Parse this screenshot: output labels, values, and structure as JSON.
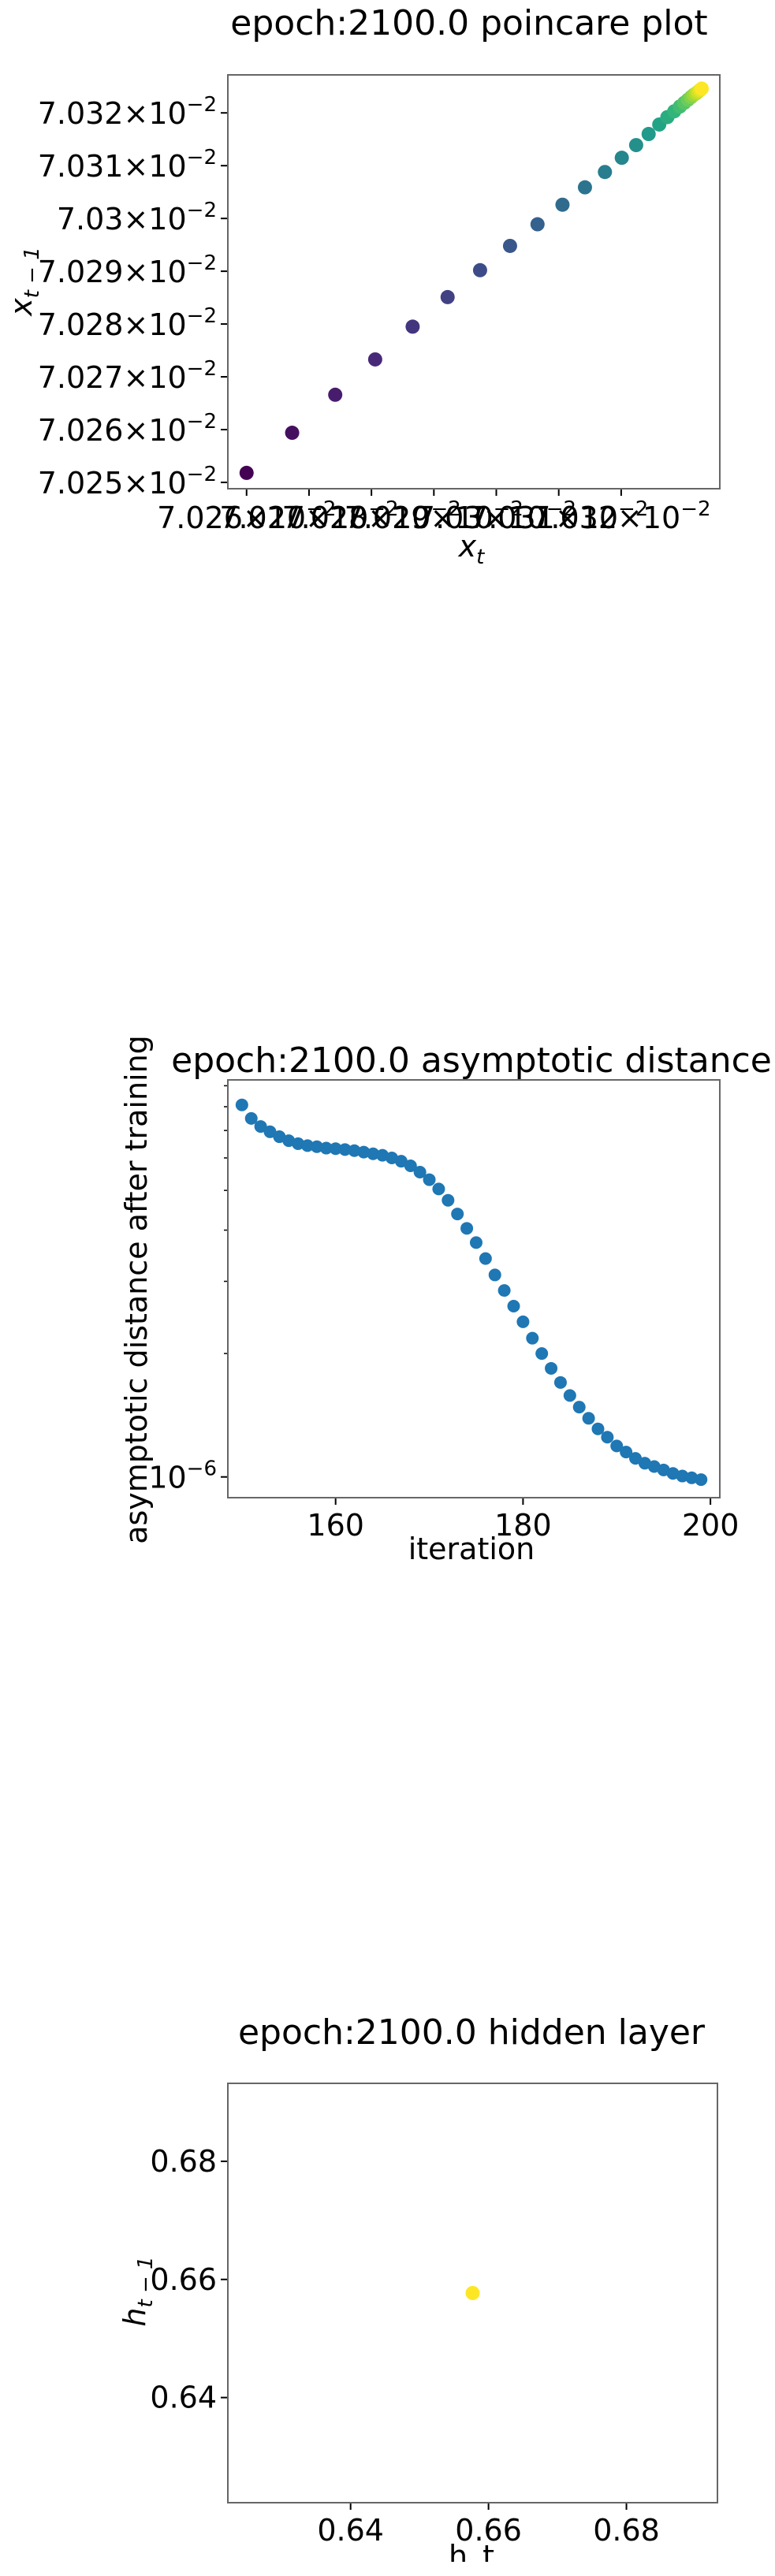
{
  "chart_data": [
    {
      "type": "scatter",
      "title": "epoch:2100.0 poincare plot",
      "xlabel": "x_t",
      "ylabel": "x_{t-1}",
      "colormap": "viridis",
      "x": [
        0.07026,
        0.0702673,
        0.0702742,
        0.0702806,
        0.0702866,
        0.0702922,
        0.0702974,
        0.0703022,
        0.0703066,
        0.0703106,
        0.0703142,
        0.0703174,
        0.0703201,
        0.0703224,
        0.0703244,
        0.0703261,
        0.0703274,
        0.0703285,
        0.0703294,
        0.0703301,
        0.0703307,
        0.0703312,
        0.0703316,
        0.070332,
        0.0703323,
        0.0703326,
        0.0703329
      ],
      "y": [
        0.0702518,
        0.0702594,
        0.0702666,
        0.0702733,
        0.0702795,
        0.0702851,
        0.0702902,
        0.0702948,
        0.0702989,
        0.0703026,
        0.0703059,
        0.0703088,
        0.0703115,
        0.0703139,
        0.070316,
        0.0703178,
        0.0703192,
        0.0703203,
        0.0703212,
        0.0703219,
        0.0703225,
        0.070323,
        0.0703234,
        0.0703237,
        0.070324,
        0.0703243,
        0.0703246
      ],
      "y_ticks": [
        {
          "value": 0.07025,
          "mant": "7.025",
          "exp": "−2"
        },
        {
          "value": 0.07026,
          "mant": "7.026",
          "exp": "−2"
        },
        {
          "value": 0.07027,
          "mant": "7.027",
          "exp": "−2"
        },
        {
          "value": 0.07028,
          "mant": "7.028",
          "exp": "−2"
        },
        {
          "value": 0.07029,
          "mant": "7.029",
          "exp": "−2"
        },
        {
          "value": 0.0703,
          "mant": "7.03",
          "exp": "−2"
        },
        {
          "value": 0.07031,
          "mant": "7.031",
          "exp": "−2"
        },
        {
          "value": 0.07032,
          "mant": "7.032",
          "exp": "−2"
        }
      ],
      "x_ticks": [
        {
          "value": 0.07026,
          "mant": "7.026",
          "exp": "−2"
        },
        {
          "value": 0.07027,
          "mant": "7.027",
          "exp": "−2"
        },
        {
          "value": 0.07028,
          "mant": "7.028",
          "exp": "−2"
        },
        {
          "value": 0.07029,
          "mant": "7.029",
          "exp": "−2"
        },
        {
          "value": 0.0703,
          "mant": "7.03",
          "exp": "−2"
        },
        {
          "value": 0.07031,
          "mant": "7.031",
          "exp": "−2"
        },
        {
          "value": 0.07032,
          "mant": "7.032",
          "exp": "−2"
        }
      ],
      "xlim": [
        0.070257,
        0.0703358
      ],
      "ylim": [
        0.0702488,
        0.0703272
      ],
      "grid": false
    },
    {
      "type": "scatter",
      "title": "epoch:2100.0 asymptotic distance",
      "xlabel": "iteration",
      "ylabel": "asymptotic distance after training",
      "yscale": "log",
      "color": "#1f77b4",
      "x": [
        150,
        151,
        152,
        153,
        154,
        155,
        156,
        157,
        158,
        159,
        160,
        161,
        162,
        163,
        164,
        165,
        166,
        167,
        168,
        169,
        170,
        171,
        172,
        173,
        174,
        175,
        176,
        177,
        178,
        179,
        180,
        181,
        182,
        183,
        184,
        185,
        186,
        187,
        188,
        189,
        190,
        191,
        192,
        193,
        194,
        195,
        196,
        197,
        198,
        199
      ],
      "y": [
        8.08e-06,
        7.49e-06,
        7.16e-06,
        6.95e-06,
        6.76e-06,
        6.61e-06,
        6.5e-06,
        6.43e-06,
        6.39e-06,
        6.34e-06,
        6.32e-06,
        6.29e-06,
        6.25e-06,
        6.2e-06,
        6.14e-06,
        6.09e-06,
        6e-06,
        5.89e-06,
        5.74e-06,
        5.54e-06,
        5.31e-06,
        5.04e-06,
        4.73e-06,
        4.38e-06,
        4.04e-06,
        3.73e-06,
        3.41e-06,
        3.11e-06,
        2.85e-06,
        2.61e-06,
        2.39e-06,
        2.18e-06,
        2e-06,
        1.84e-06,
        1.7e-06,
        1.58e-06,
        1.48e-06,
        1.39e-06,
        1.31e-06,
        1.25e-06,
        1.19e-06,
        1.15e-06,
        1.11e-06,
        1.08e-06,
        1.06e-06,
        1.04e-06,
        1.02e-06,
        1.005e-06,
        9.95e-07,
        9.85e-07
      ],
      "xlim": [
        148.5,
        201
      ],
      "ylim": [
        8.9e-07,
        9.3e-06
      ],
      "x_ticks": [
        {
          "value": 160,
          "label": "160"
        },
        {
          "value": 180,
          "label": "180"
        },
        {
          "value": 200,
          "label": "200"
        }
      ],
      "y_major_ticks": [
        {
          "value": 1e-06,
          "mant": "10",
          "exp": "−6"
        }
      ],
      "grid": false
    },
    {
      "type": "scatter",
      "title": "epoch:2100.0 hidden layer",
      "xlabel": "h_t",
      "ylabel": "h_{t-1}",
      "color": "#fde725",
      "x": [
        0.6577
      ],
      "y": [
        0.6577
      ],
      "xlim": [
        0.6222,
        0.6932
      ],
      "ylim": [
        0.6222,
        0.6932
      ],
      "x_ticks": [
        {
          "value": 0.64,
          "label": "0.64"
        },
        {
          "value": 0.66,
          "label": "0.66"
        },
        {
          "value": 0.68,
          "label": "0.68"
        }
      ],
      "y_ticks": [
        {
          "value": 0.64,
          "label": "0.64"
        },
        {
          "value": 0.66,
          "label": "0.66"
        },
        {
          "value": 0.68,
          "label": "0.68"
        }
      ],
      "grid": false
    }
  ]
}
